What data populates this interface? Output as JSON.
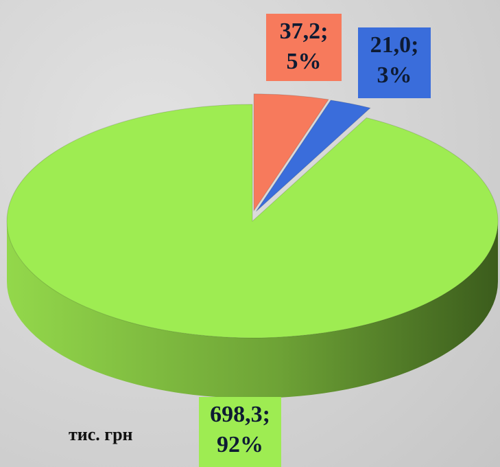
{
  "chart_data": {
    "type": "pie3d",
    "categories": [
      null,
      null,
      null
    ],
    "values": [
      37.2,
      21.0,
      698.3
    ],
    "value_labels": [
      "37,2;\n5%",
      "21,0;\n3%",
      "698,3;\n92%"
    ],
    "colors": [
      "#f77a5c",
      "#3a6ddb",
      "#9eec52"
    ],
    "annotation": "тис. грн"
  }
}
